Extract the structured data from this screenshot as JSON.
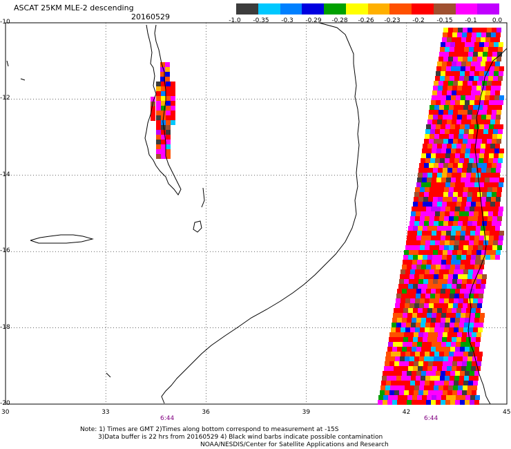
{
  "title": "ASCAT 25KM MLE-2 descending",
  "date": "20160529",
  "colorbar": {
    "labels": [
      "-1.0",
      "-0.35",
      "-0.3",
      "-0.29",
      "-0.28",
      "-0.26",
      "-0.23",
      "-0.2",
      "-0.15",
      "-0.1",
      "0.0"
    ],
    "colors": [
      "#3c3c3c",
      "#00c8ff",
      "#0080ff",
      "#0000e0",
      "#00a000",
      "#ffff00",
      "#ffb000",
      "#ff5000",
      "#ff0000",
      "#a05030",
      "#ff00ff",
      "#c000ff"
    ]
  },
  "map": {
    "lon_ticks": [
      "30",
      "33",
      "36",
      "39",
      "42",
      "45"
    ],
    "lat_ticks": [
      "-10",
      "-12",
      "-14",
      "-16",
      "-18",
      "-20"
    ],
    "lon_range": [
      30,
      45
    ],
    "lat_range": [
      -20,
      -10
    ],
    "grid": true
  },
  "time_labels": [
    "6:44",
    "6:44"
  ],
  "notes": [
    "Note: 1) Times are GMT 2)Times along bottom correspond to measurement at -15S",
    "3)Data buffer is 22 hrs from 20160529 4) Black wind barbs indicate possible contamination",
    "NOAA/NESDIS/Center for Satellite Applications and Research"
  ]
}
